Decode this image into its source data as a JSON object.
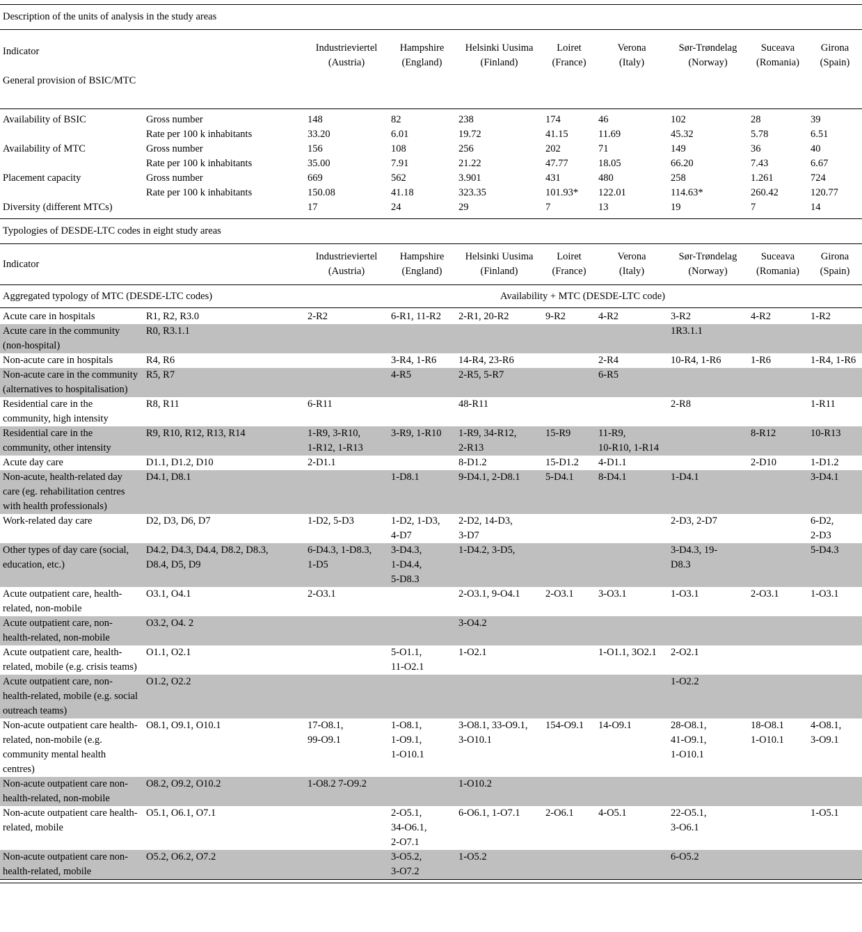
{
  "page": {
    "caption1": "Description of the units of analysis in the study areas",
    "caption2": "Typologies of DESDE-LTC codes in eight study areas"
  },
  "colors": {
    "row_shade": "#bfbfbf",
    "rule": "#000000"
  },
  "regions": [
    {
      "name": "Industrieviertel",
      "country": "(Austria)"
    },
    {
      "name": "Hampshire",
      "country": "(England)"
    },
    {
      "name": "Helsinki Uusima",
      "country": "(Finland)"
    },
    {
      "name": "Loiret",
      "country": "(France)"
    },
    {
      "name": "Verona",
      "country": "(Italy)"
    },
    {
      "name": "Sør-Trøndelag",
      "country": "(Norway)"
    },
    {
      "name": "Suceava",
      "country": "(Romania)"
    },
    {
      "name": "Girona",
      "country": "(Spain)"
    }
  ],
  "table1": {
    "indicator_label": "Indicator",
    "section_label": "General provision of BSIC/MTC",
    "rows": [
      {
        "indicator": "Availability of BSIC",
        "measure": "Gross number",
        "values": [
          "148",
          "82",
          "238",
          "174",
          "46",
          "102",
          "28",
          "39"
        ]
      },
      {
        "indicator": "",
        "measure": "Rate per 100 k inhabitants",
        "values": [
          "33.20",
          "6.01",
          "19.72",
          "41.15",
          "11.69",
          "45.32",
          "5.78",
          "6.51"
        ]
      },
      {
        "indicator": "Availability of MTC",
        "measure": "Gross number",
        "values": [
          "156",
          "108",
          "256",
          "202",
          "71",
          "149",
          "36",
          "40"
        ]
      },
      {
        "indicator": "",
        "measure": "Rate per 100 k inhabitants",
        "values": [
          "35.00",
          "7.91",
          "21.22",
          "47.77",
          "18.05",
          "66.20",
          "7.43",
          "6.67"
        ]
      },
      {
        "indicator": "Placement capacity",
        "measure": "Gross number",
        "values": [
          "669",
          "562",
          "3.901",
          "431",
          "480",
          "258",
          "1.261",
          "724"
        ]
      },
      {
        "indicator": "",
        "measure": "Rate per 100 k inhabitants",
        "values": [
          "150.08",
          "41.18",
          "323.35",
          "101.93*",
          "122.01",
          "114.63*",
          "260.42",
          "120.77"
        ]
      },
      {
        "indicator": "Diversity (different MTCs)",
        "measure": "",
        "values": [
          "17",
          "24",
          "29",
          "7",
          "13",
          "19",
          "7",
          "14"
        ]
      }
    ]
  },
  "table2": {
    "indicator_label": "Indicator",
    "left_subheader": "Aggregated typology of MTC (DESDE-LTC codes)",
    "right_subheader": "Availability + MTC (DESDE-LTC code)",
    "rows": [
      {
        "indicator": "Acute care in hospitals",
        "codes": "R1, R2, R3.0",
        "shaded": false,
        "values": [
          "2-R2",
          "6-R1, 11-R2",
          "2-R1, 20-R2",
          "9-R2",
          "4-R2",
          "3-R2",
          "4-R2",
          "1-R2"
        ]
      },
      {
        "indicator": "Acute care in the community (non-hospital)",
        "codes": "R0, R3.1.1",
        "shaded": true,
        "values": [
          "",
          "",
          "",
          "",
          "",
          "1R3.1.1",
          "",
          ""
        ]
      },
      {
        "indicator": "Non-acute care in hospitals",
        "codes": "R4, R6",
        "shaded": false,
        "values": [
          "",
          "3-R4, 1-R6",
          "14-R4, 23-R6",
          "",
          "2-R4",
          "10-R4, 1-R6",
          "1-R6",
          "1-R4, 1-R6"
        ]
      },
      {
        "indicator": "Non-acute care in the community (alternatives to hospitalisation)",
        "codes": "R5, R7",
        "shaded": true,
        "values": [
          "",
          "4-R5",
          "2-R5, 5-R7",
          "",
          "6-R5",
          "",
          "",
          ""
        ]
      },
      {
        "indicator": "Residential care in the community, high intensity",
        "codes": "R8, R11",
        "shaded": false,
        "values": [
          "6-R11",
          "",
          "48-R11",
          "",
          "",
          "2-R8",
          "",
          "1-R11"
        ]
      },
      {
        "indicator": "Residential care in the community, other intensity",
        "codes": "R9, R10, R12, R13, R14",
        "shaded": true,
        "values": [
          "1-R9, 3-R10,\n1-R12, 1-R13",
          "3-R9, 1-R10",
          "1-R9, 34-R12,\n2-R13",
          "15-R9",
          "11-R9,\n10-R10, 1-R14",
          "",
          "8-R12",
          "10-R13"
        ]
      },
      {
        "indicator": "Acute day care",
        "codes": "D1.1, D1.2, D10",
        "shaded": false,
        "values": [
          "2-D1.1",
          "",
          "8-D1.2",
          "15-D1.2",
          "4-D1.1",
          "",
          "2-D10",
          "1-D1.2"
        ]
      },
      {
        "indicator": "Non-acute, health-related day care (eg. rehabilitation centres with health professionals)",
        "codes": "D4.1, D8.1",
        "shaded": true,
        "values": [
          "",
          "1-D8.1",
          "9-D4.1, 2-D8.1",
          "5-D4.1",
          "8-D4.1",
          "1-D4.1",
          "",
          "3-D4.1"
        ]
      },
      {
        "indicator": "Work-related day care",
        "codes": "D2, D3, D6, D7",
        "shaded": false,
        "values": [
          "1-D2, 5-D3",
          "1-D2, 1-D3,\n4-D7",
          "2-D2, 14-D3,\n3-D7",
          "",
          "",
          "2-D3, 2-D7",
          "",
          "6-D2,\n2-D3"
        ]
      },
      {
        "indicator": "Other types of day care (social, education, etc.)",
        "codes": "D4.2, D4.3, D4.4, D8.2, D8.3,\nD8.4, D5, D9",
        "shaded": true,
        "values": [
          "6-D4.3, 1-D8.3,\n1-D5",
          "3-D4.3,\n1-D4.4,\n5-D8.3",
          "1-D4.2, 3-D5,",
          "",
          "",
          "3-D4.3, 19-\nD8.3",
          "",
          "5-D4.3"
        ]
      },
      {
        "indicator": "Acute outpatient care, health-related, non-mobile",
        "codes": "O3.1, O4.1",
        "shaded": false,
        "values": [
          "2-O3.1",
          "",
          "2-O3.1, 9-O4.1",
          "2-O3.1",
          "3-O3.1",
          "1-O3.1",
          "2-O3.1",
          "1-O3.1"
        ]
      },
      {
        "indicator": "Acute outpatient care, non-health-related, non-mobile",
        "codes": "O3.2, O4. 2",
        "shaded": true,
        "values": [
          "",
          "",
          "3-O4.2",
          "",
          "",
          "",
          "",
          ""
        ]
      },
      {
        "indicator": "Acute outpatient care, health-related, mobile (e.g. crisis teams)",
        "codes": "O1.1, O2.1",
        "shaded": false,
        "values": [
          "",
          "5-O1.1,\n11-O2.1",
          "1-O2.1",
          "",
          "1-O1.1, 3O2.1",
          "2-O2.1",
          "",
          ""
        ]
      },
      {
        "indicator": "Acute outpatient care, non-health-related, mobile (e.g. social outreach teams)",
        "codes": "O1.2, O2.2",
        "shaded": true,
        "values": [
          "",
          "",
          "",
          "",
          "",
          "1-O2.2",
          "",
          ""
        ]
      },
      {
        "indicator": "Non-acute outpatient care health-related, non-mobile (e.g. community mental health centres)",
        "codes": "O8.1, O9.1, O10.1",
        "shaded": false,
        "values": [
          "17-O8.1,\n99-O9.1",
          "1-O8.1,\n1-O9.1,\n1-O10.1",
          "3-O8.1, 33-O9.1,\n3-O10.1",
          "154-O9.1",
          "14-O9.1",
          "28-O8.1,\n41-O9.1,\n1-O10.1",
          "18-O8.1\n1-O10.1",
          "4-O8.1,\n3-O9.1"
        ]
      },
      {
        "indicator": "Non-acute outpatient care non-health-related, non-mobile",
        "codes": "O8.2, O9.2, O10.2",
        "shaded": true,
        "values": [
          "1-O8.2 7-O9.2",
          "",
          "1-O10.2",
          "",
          "",
          "",
          "",
          ""
        ]
      },
      {
        "indicator": "Non-acute outpatient care health-related, mobile",
        "codes": "O5.1, O6.1, O7.1",
        "shaded": false,
        "values": [
          "",
          "2-O5.1,\n34-O6.1,\n2-O7.1",
          "6-O6.1, 1-O7.1",
          "2-O6.1",
          "4-O5.1",
          "22-O5.1,\n3-O6.1",
          "",
          "1-O5.1"
        ]
      },
      {
        "indicator": "Non-acute outpatient care non-health-related, mobile",
        "codes": "O5.2, O6.2, O7.2",
        "shaded": true,
        "values": [
          "",
          "3-O5.2,\n3-O7.2",
          "1-O5.2",
          "",
          "",
          "6-O5.2",
          "",
          ""
        ]
      }
    ]
  }
}
